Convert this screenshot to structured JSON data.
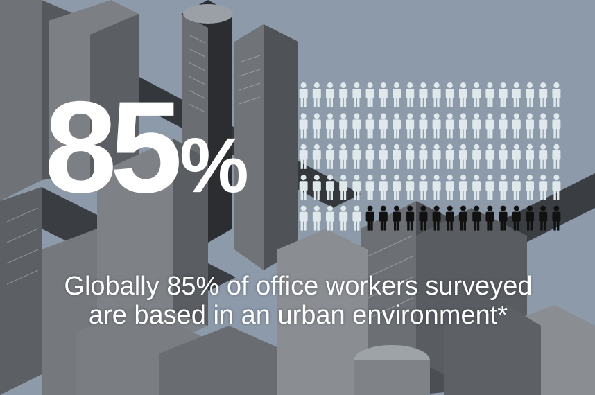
{
  "infographic": {
    "big_number": "85",
    "percent_sign": "%",
    "caption_line1": "Globally 85% of office workers surveyed",
    "caption_line2": "are based in an urban environment*"
  },
  "pictogram": {
    "total_figures": 100,
    "highlighted_figures": 85,
    "colors": {
      "urban": "#dfe9ec",
      "other": "#111111"
    }
  },
  "colors": {
    "background": "#8d9aaa",
    "text": "#ffffff"
  }
}
